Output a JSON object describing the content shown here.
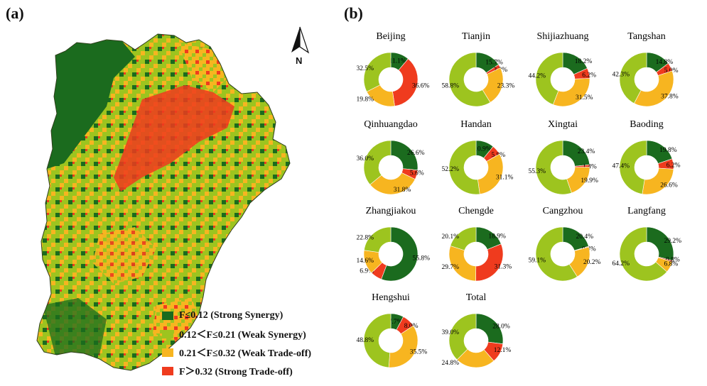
{
  "panel_a": {
    "label": "(a)"
  },
  "panel_b": {
    "label": "(b)"
  },
  "north_label": "N",
  "colors": {
    "strong_synergy": "#1b6b1e",
    "weak_synergy": "#9dc41f",
    "weak_tradeoff": "#f7b520",
    "strong_tradeoff": "#ef3b1e"
  },
  "legend": [
    {
      "key": "strong_synergy",
      "label": "F≤0.12 (Strong Synergy)"
    },
    {
      "key": "weak_synergy",
      "label": "0.12＜F≤0.21 (Weak Synergy)"
    },
    {
      "key": "weak_tradeoff",
      "label": "0.21＜F≤0.32 (Weak Trade-off)"
    },
    {
      "key": "strong_tradeoff",
      "label": "F＞0.32 (Strong Trade-off)"
    }
  ],
  "chart_data": {
    "type": "pie",
    "donut": true,
    "category_order": [
      "Strong Synergy",
      "Strong Trade-off",
      "Weak Trade-off",
      "Weak Synergy"
    ],
    "cities": [
      {
        "name": "Beijing",
        "values": [
          11.1,
          36.6,
          19.8,
          32.5
        ]
      },
      {
        "name": "Tianjin",
        "values": [
          15.7,
          2.2,
          23.3,
          58.8
        ]
      },
      {
        "name": "Shijiazhuang",
        "values": [
          18.2,
          6.2,
          31.5,
          44.2
        ]
      },
      {
        "name": "Tangshan",
        "values": [
          14.8,
          5.0,
          37.8,
          42.3
        ]
      },
      {
        "name": "Qinhuangdao",
        "values": [
          26.6,
          5.6,
          31.8,
          36.0
        ]
      },
      {
        "name": "Handan",
        "values": [
          10.9,
          5.8,
          31.1,
          52.2
        ]
      },
      {
        "name": "Xingtai",
        "values": [
          23.4,
          1.4,
          19.9,
          55.3
        ]
      },
      {
        "name": "Baoding",
        "values": [
          19.8,
          6.2,
          26.6,
          47.4
        ]
      },
      {
        "name": "Zhangjiakou",
        "values": [
          55.8,
          6.9,
          14.6,
          22.8
        ]
      },
      {
        "name": "Chengde",
        "values": [
          18.9,
          31.3,
          29.7,
          20.1
        ]
      },
      {
        "name": "Cangzhou",
        "values": [
          20.4,
          0.4,
          20.2,
          59.1
        ]
      },
      {
        "name": "Langfang",
        "values": [
          29.2,
          0.8,
          6.8,
          64.2
        ]
      },
      {
        "name": "Hengshui",
        "values": [
          7.7,
          8.0,
          35.5,
          48.8
        ]
      },
      {
        "name": "Total",
        "values": [
          28.0,
          12.1,
          24.8,
          39.0
        ]
      }
    ]
  }
}
